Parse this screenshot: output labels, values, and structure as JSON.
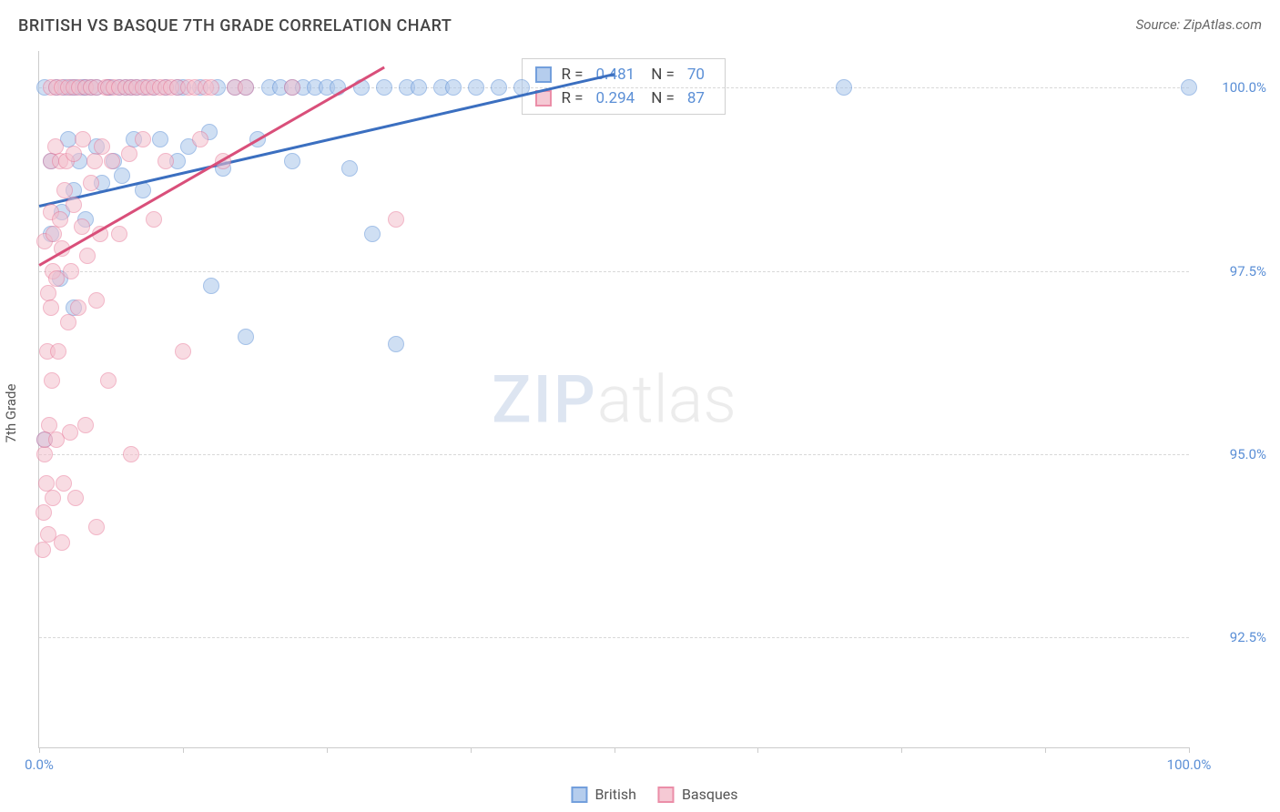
{
  "title": "BRITISH VS BASQUE 7TH GRADE CORRELATION CHART",
  "source": "Source: ZipAtlas.com",
  "ylabel": "7th Grade",
  "watermark_zip": "ZIP",
  "watermark_atlas": "atlas",
  "chart": {
    "type": "scatter",
    "background_color": "#ffffff",
    "grid_color": "#d8d8d8",
    "axis_color": "#cccccc",
    "tick_label_color": "#5b8fd6",
    "tick_fontsize": 15,
    "xlim": [
      0,
      100
    ],
    "ylim": [
      91,
      100.5
    ],
    "x_ticks": [
      0,
      12.5,
      25,
      37.5,
      50,
      62.5,
      75,
      87.5,
      100
    ],
    "x_tick_labels": {
      "0": "0.0%",
      "100": "100.0%"
    },
    "y_gridlines": [
      92.5,
      95.0,
      97.5,
      100.0
    ],
    "y_tick_labels": [
      "92.5%",
      "95.0%",
      "97.5%",
      "100.0%"
    ],
    "marker_radius": 9,
    "marker_opacity": 0.55,
    "series": [
      {
        "name": "British",
        "color_fill": "#a9c5ea",
        "color_stroke": "#5b8fd6",
        "R": "0.481",
        "N": "70",
        "trend": {
          "x1": 0,
          "y1": 98.4,
          "x2": 50,
          "y2": 100.2,
          "color": "#3b6fc0",
          "width": 2.5
        },
        "points": [
          [
            0.5,
            95.2
          ],
          [
            0.5,
            100
          ],
          [
            1,
            98.0
          ],
          [
            1,
            99.0
          ],
          [
            1.5,
            100
          ],
          [
            1.8,
            97.4
          ],
          [
            2,
            98.3
          ],
          [
            2.2,
            100
          ],
          [
            2.5,
            99.3
          ],
          [
            2.8,
            100
          ],
          [
            3,
            98.6
          ],
          [
            3,
            97.0
          ],
          [
            3.2,
            100
          ],
          [
            3.5,
            99.0
          ],
          [
            3.8,
            100
          ],
          [
            4,
            98.2
          ],
          [
            4,
            100
          ],
          [
            4.5,
            100
          ],
          [
            5,
            99.2
          ],
          [
            5,
            100
          ],
          [
            5.5,
            98.7
          ],
          [
            6,
            100
          ],
          [
            6.2,
            100
          ],
          [
            6.5,
            99.0
          ],
          [
            7,
            100
          ],
          [
            7.2,
            98.8
          ],
          [
            7.5,
            100
          ],
          [
            8,
            100
          ],
          [
            8.2,
            99.3
          ],
          [
            8.5,
            100
          ],
          [
            9,
            98.6
          ],
          [
            9.2,
            100
          ],
          [
            10,
            100
          ],
          [
            10.5,
            99.3
          ],
          [
            11,
            100
          ],
          [
            12,
            100
          ],
          [
            12,
            99.0
          ],
          [
            12.5,
            100
          ],
          [
            13,
            99.2
          ],
          [
            14,
            100
          ],
          [
            14.8,
            99.4
          ],
          [
            15,
            97.3
          ],
          [
            15.5,
            100
          ],
          [
            16,
            98.9
          ],
          [
            17,
            100
          ],
          [
            18,
            100
          ],
          [
            18,
            96.6
          ],
          [
            19,
            99.3
          ],
          [
            20,
            100
          ],
          [
            21,
            100
          ],
          [
            22,
            100
          ],
          [
            22,
            99.0
          ],
          [
            23,
            100
          ],
          [
            24,
            100
          ],
          [
            25,
            100
          ],
          [
            26,
            100
          ],
          [
            27,
            98.9
          ],
          [
            28,
            100
          ],
          [
            29,
            98.0
          ],
          [
            30,
            100
          ],
          [
            31,
            96.5
          ],
          [
            32,
            100
          ],
          [
            33,
            100
          ],
          [
            35,
            100
          ],
          [
            36,
            100
          ],
          [
            38,
            100
          ],
          [
            40,
            100
          ],
          [
            42,
            100
          ],
          [
            70,
            100
          ],
          [
            100,
            100
          ]
        ]
      },
      {
        "name": "Basques",
        "color_fill": "#f4c0cd",
        "color_stroke": "#e87b9a",
        "R": "0.294",
        "N": "87",
        "trend": {
          "x1": 0,
          "y1": 97.6,
          "x2": 30,
          "y2": 100.3,
          "color": "#d94f7a",
          "width": 2.5
        },
        "points": [
          [
            0.3,
            93.7
          ],
          [
            0.4,
            94.2
          ],
          [
            0.5,
            95.0
          ],
          [
            0.5,
            95.2
          ],
          [
            0.5,
            97.9
          ],
          [
            0.6,
            94.6
          ],
          [
            0.7,
            96.4
          ],
          [
            0.8,
            93.9
          ],
          [
            0.8,
            97.2
          ],
          [
            0.9,
            95.4
          ],
          [
            1,
            97.0
          ],
          [
            1,
            98.3
          ],
          [
            1,
            99.0
          ],
          [
            1,
            100
          ],
          [
            1.1,
            96.0
          ],
          [
            1.2,
            94.4
          ],
          [
            1.2,
            97.5
          ],
          [
            1.3,
            98.0
          ],
          [
            1.4,
            99.2
          ],
          [
            1.5,
            95.2
          ],
          [
            1.5,
            97.4
          ],
          [
            1.5,
            100
          ],
          [
            1.7,
            96.4
          ],
          [
            1.8,
            98.2
          ],
          [
            1.8,
            99.0
          ],
          [
            2,
            93.8
          ],
          [
            2,
            97.8
          ],
          [
            2,
            100
          ],
          [
            2.1,
            94.6
          ],
          [
            2.2,
            98.6
          ],
          [
            2.4,
            99.0
          ],
          [
            2.5,
            96.8
          ],
          [
            2.5,
            100
          ],
          [
            2.7,
            95.3
          ],
          [
            2.8,
            97.5
          ],
          [
            3,
            98.4
          ],
          [
            3,
            99.1
          ],
          [
            3,
            100
          ],
          [
            3.2,
            94.4
          ],
          [
            3.4,
            97.0
          ],
          [
            3.5,
            100
          ],
          [
            3.7,
            98.1
          ],
          [
            3.8,
            99.3
          ],
          [
            4,
            95.4
          ],
          [
            4,
            100
          ],
          [
            4.2,
            97.7
          ],
          [
            4.5,
            98.7
          ],
          [
            4.5,
            100
          ],
          [
            4.8,
            99.0
          ],
          [
            5,
            94.0
          ],
          [
            5,
            97.1
          ],
          [
            5,
            100
          ],
          [
            5.3,
            98.0
          ],
          [
            5.5,
            99.2
          ],
          [
            5.8,
            100
          ],
          [
            6,
            96.0
          ],
          [
            6,
            100
          ],
          [
            6.3,
            99.0
          ],
          [
            6.5,
            100
          ],
          [
            7,
            98.0
          ],
          [
            7,
            100
          ],
          [
            7.5,
            100
          ],
          [
            7.8,
            99.1
          ],
          [
            8,
            95.0
          ],
          [
            8,
            100
          ],
          [
            8.5,
            100
          ],
          [
            9,
            99.3
          ],
          [
            9,
            100
          ],
          [
            9.5,
            100
          ],
          [
            10,
            98.2
          ],
          [
            10,
            100
          ],
          [
            10.5,
            100
          ],
          [
            11,
            99.0
          ],
          [
            11,
            100
          ],
          [
            11.5,
            100
          ],
          [
            12,
            100
          ],
          [
            12.5,
            96.4
          ],
          [
            13,
            100
          ],
          [
            13.5,
            100
          ],
          [
            14,
            99.3
          ],
          [
            14.5,
            100
          ],
          [
            15,
            100
          ],
          [
            16,
            99.0
          ],
          [
            17,
            100
          ],
          [
            18,
            100
          ],
          [
            22,
            100
          ],
          [
            31,
            98.2
          ]
        ]
      }
    ]
  },
  "stat_legend": {
    "r_label": "R =",
    "n_label": "N ="
  },
  "bottom_legend": [
    "British",
    "Basques"
  ]
}
